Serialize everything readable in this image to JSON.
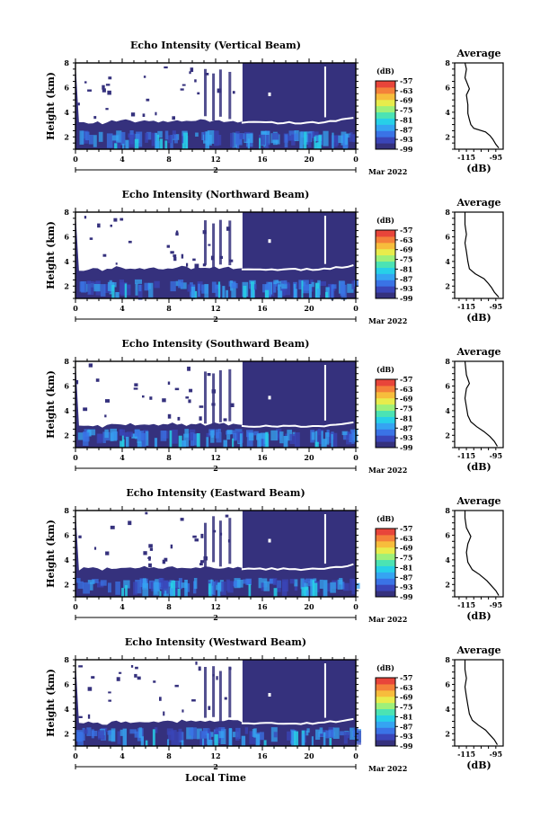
{
  "chart_data": [
    {
      "type": "heatmap",
      "title": "Echo Intensity (Vertical Beam)",
      "ylabel": "Height (km)",
      "xlim": [
        0,
        24
      ],
      "ylim": [
        1,
        8
      ],
      "x_ticks": [
        "0",
        "4",
        "8",
        "12",
        "16",
        "20",
        "0"
      ],
      "y_ticks": [
        "2",
        "4",
        "6",
        "8"
      ],
      "date_marker": "2",
      "date_label": "Mar 2022",
      "cloud_top_km": 3.3,
      "colorbar": {
        "unit": "(dB)",
        "ticks": [
          "-57",
          "-63",
          "-69",
          "-75",
          "-81",
          "-87",
          "-93",
          "-99"
        ],
        "range": [
          -99,
          -57
        ]
      },
      "profile": {
        "title": "Average",
        "xlabel": "(dB)",
        "x_ticks": [
          "-115",
          "-95"
        ],
        "y_ticks": [
          "2",
          "4",
          "6",
          "8"
        ],
        "points": [
          [
            -93,
            1.1
          ],
          [
            -95,
            1.4
          ],
          [
            -97,
            1.8
          ],
          [
            -99,
            2.1
          ],
          [
            -102,
            2.4
          ],
          [
            -110,
            2.7
          ],
          [
            -112,
            3.0
          ],
          [
            -113,
            3.4
          ],
          [
            -114,
            3.9
          ],
          [
            -114,
            4.6
          ],
          [
            -115,
            5.4
          ],
          [
            -113,
            5.9
          ],
          [
            -116,
            6.8
          ],
          [
            -115,
            7.5
          ],
          [
            -116,
            8.0
          ]
        ]
      }
    },
    {
      "type": "heatmap",
      "title": "Echo Intensity (Northward Beam)",
      "ylabel": "Height (km)",
      "xlim": [
        0,
        24
      ],
      "ylim": [
        1,
        8
      ],
      "x_ticks": [
        "0",
        "4",
        "8",
        "12",
        "16",
        "20",
        "0"
      ],
      "y_ticks": [
        "2",
        "4",
        "6",
        "8"
      ],
      "date_marker": "2",
      "date_label": "Mar 2022",
      "cloud_top_km": 3.5,
      "colorbar": {
        "unit": "(dB)",
        "ticks": [
          "-57",
          "-63",
          "-69",
          "-75",
          "-81",
          "-87",
          "-93",
          "-99"
        ],
        "range": [
          -99,
          -57
        ]
      },
      "profile": {
        "title": "Average",
        "xlabel": "(dB)",
        "x_ticks": [
          "-115",
          "-95"
        ],
        "y_ticks": [
          "2",
          "4",
          "6",
          "8"
        ],
        "points": [
          [
            -93,
            1.1
          ],
          [
            -96,
            1.5
          ],
          [
            -98,
            1.9
          ],
          [
            -100,
            2.2
          ],
          [
            -103,
            2.6
          ],
          [
            -109,
            3.0
          ],
          [
            -113,
            3.4
          ],
          [
            -114,
            4.0
          ],
          [
            -115,
            4.8
          ],
          [
            -116,
            5.5
          ],
          [
            -115,
            6.2
          ],
          [
            -116,
            7.0
          ],
          [
            -116,
            8.0
          ]
        ]
      }
    },
    {
      "type": "heatmap",
      "title": "Echo Intensity (Southward Beam)",
      "ylabel": "Height (km)",
      "xlim": [
        0,
        24
      ],
      "ylim": [
        1,
        8
      ],
      "x_ticks": [
        "0",
        "4",
        "8",
        "12",
        "16",
        "20",
        "0"
      ],
      "y_ticks": [
        "2",
        "4",
        "6",
        "8"
      ],
      "date_marker": "2",
      "date_label": "Mar 2022",
      "cloud_top_km": 2.9,
      "colorbar": {
        "unit": "(dB)",
        "ticks": [
          "-57",
          "-63",
          "-69",
          "-75",
          "-81",
          "-87",
          "-93",
          "-99"
        ],
        "range": [
          -99,
          -57
        ]
      },
      "profile": {
        "title": "Average",
        "xlabel": "(dB)",
        "x_ticks": [
          "-115",
          "-95"
        ],
        "y_ticks": [
          "2",
          "4",
          "6",
          "8"
        ],
        "points": [
          [
            -94,
            1.1
          ],
          [
            -96,
            1.5
          ],
          [
            -99,
            1.9
          ],
          [
            -103,
            2.3
          ],
          [
            -108,
            2.7
          ],
          [
            -112,
            3.1
          ],
          [
            -114,
            3.6
          ],
          [
            -115,
            4.3
          ],
          [
            -116,
            5.0
          ],
          [
            -115,
            5.8
          ],
          [
            -113,
            6.2
          ],
          [
            -115,
            6.9
          ],
          [
            -116,
            8.0
          ]
        ]
      }
    },
    {
      "type": "heatmap",
      "title": "Echo Intensity (Eastward Beam)",
      "ylabel": "Height (km)",
      "xlim": [
        0,
        24
      ],
      "ylim": [
        1,
        8
      ],
      "x_ticks": [
        "0",
        "4",
        "8",
        "12",
        "16",
        "20",
        "0"
      ],
      "y_ticks": [
        "2",
        "4",
        "6",
        "8"
      ],
      "date_marker": "2",
      "date_label": "Mar 2022",
      "cloud_top_km": 3.4,
      "colorbar": {
        "unit": "(dB)",
        "ticks": [
          "-57",
          "-63",
          "-69",
          "-75",
          "-81",
          "-87",
          "-93",
          "-99"
        ],
        "range": [
          -99,
          -57
        ]
      },
      "profile": {
        "title": "Average",
        "xlabel": "(dB)",
        "x_ticks": [
          "-115",
          "-95"
        ],
        "y_ticks": [
          "2",
          "4",
          "6",
          "8"
        ],
        "points": [
          [
            -93,
            1.1
          ],
          [
            -95,
            1.5
          ],
          [
            -98,
            1.9
          ],
          [
            -101,
            2.3
          ],
          [
            -106,
            2.8
          ],
          [
            -111,
            3.2
          ],
          [
            -114,
            3.8
          ],
          [
            -115,
            4.6
          ],
          [
            -114,
            5.3
          ],
          [
            -112,
            5.9
          ],
          [
            -115,
            6.6
          ],
          [
            -116,
            7.4
          ],
          [
            -116,
            8.0
          ]
        ]
      }
    },
    {
      "type": "heatmap",
      "title": "Echo Intensity (Westward Beam)",
      "ylabel": "Height (km)",
      "xlim": [
        0,
        24
      ],
      "ylim": [
        1,
        8
      ],
      "x_ticks": [
        "0",
        "4",
        "8",
        "12",
        "16",
        "20",
        "0"
      ],
      "y_ticks": [
        "2",
        "4",
        "6",
        "8"
      ],
      "date_marker": "2",
      "date_label": "Mar 2022",
      "xlabel": "Local Time",
      "cloud_top_km": 3.0,
      "colorbar": {
        "unit": "(dB)",
        "ticks": [
          "-57",
          "-63",
          "-69",
          "-75",
          "-81",
          "-87",
          "-93",
          "-99"
        ],
        "range": [
          -99,
          -57
        ]
      },
      "profile": {
        "title": "Average",
        "xlabel": "(dB)",
        "x_ticks": [
          "-115",
          "-95"
        ],
        "y_ticks": [
          "2",
          "4",
          "6",
          "8"
        ],
        "points": [
          [
            -94,
            1.1
          ],
          [
            -96,
            1.5
          ],
          [
            -99,
            1.9
          ],
          [
            -102,
            2.3
          ],
          [
            -107,
            2.7
          ],
          [
            -111,
            3.1
          ],
          [
            -113,
            3.6
          ],
          [
            -114,
            4.3
          ],
          [
            -115,
            5.0
          ],
          [
            -116,
            5.8
          ],
          [
            -115,
            6.5
          ],
          [
            -116,
            7.2
          ],
          [
            -116,
            8.0
          ]
        ]
      }
    }
  ]
}
